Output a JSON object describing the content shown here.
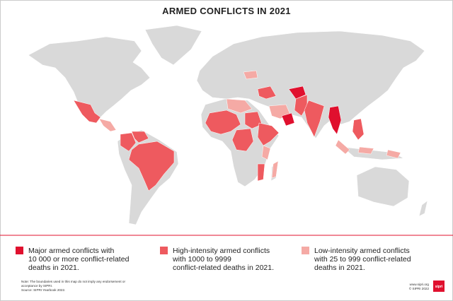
{
  "title": "ARMED CONFLICTS IN 2021",
  "legend": [
    {
      "color": "#e0102e",
      "lines": [
        "Major armed conflicts with",
        "10 000 or more conflict-related",
        "deaths in 2021."
      ]
    },
    {
      "color": "#ee5a5f",
      "lines": [
        "High-intensity armed conflicts",
        "with 1000 to 9999",
        "conflict-related deaths in 2021."
      ]
    },
    {
      "color": "#f5aaa5",
      "lines": [
        "Low-intensity armed conflicts",
        "with 25 to 999 conflict-related",
        "deaths in 2021."
      ]
    }
  ],
  "note": [
    "Note: The boundaries used in this map do not imply any endorsement or",
    "acceptance by SIPRI."
  ],
  "source": "Source: SIPRI Yearbook 2022.",
  "credits": [
    "www.sipri.org",
    "© SIPRI 2022"
  ],
  "logo": "sipri"
}
